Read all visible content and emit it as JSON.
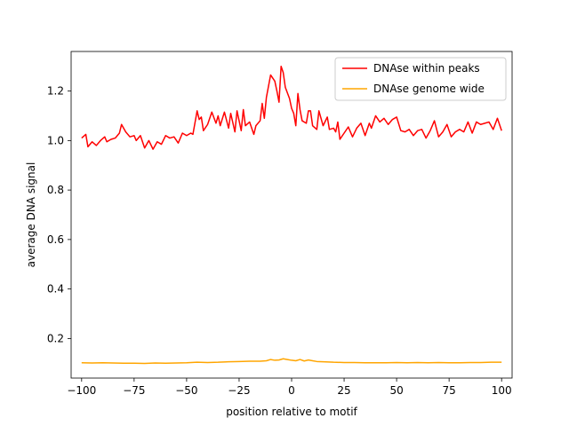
{
  "chart_data": {
    "type": "line",
    "title": "",
    "xlabel": "position relative to motif",
    "ylabel": "average DNA signal",
    "xlim": [
      -105,
      105
    ],
    "ylim": [
      0.04,
      1.36
    ],
    "xticks": [
      -100,
      -75,
      -50,
      -25,
      0,
      25,
      50,
      75,
      100
    ],
    "yticks": [
      0.2,
      0.4,
      0.6,
      0.8,
      1.0,
      1.2
    ],
    "grid": false,
    "legend": "top-right",
    "series": [
      {
        "name": "DNAse within peaks",
        "color": "#ff0000",
        "points": [
          [
            -100,
            1.01
          ],
          [
            -98,
            1.025
          ],
          [
            -97,
            0.975
          ],
          [
            -95,
            0.995
          ],
          [
            -93,
            0.98
          ],
          [
            -91,
            1.0
          ],
          [
            -89,
            1.015
          ],
          [
            -88,
            0.995
          ],
          [
            -86,
            1.005
          ],
          [
            -84,
            1.01
          ],
          [
            -82,
            1.03
          ],
          [
            -81,
            1.065
          ],
          [
            -79,
            1.035
          ],
          [
            -77,
            1.015
          ],
          [
            -75,
            1.02
          ],
          [
            -74,
            1.0
          ],
          [
            -72,
            1.02
          ],
          [
            -70,
            0.97
          ],
          [
            -68,
            1.0
          ],
          [
            -66,
            0.965
          ],
          [
            -64,
            0.995
          ],
          [
            -62,
            0.985
          ],
          [
            -60,
            1.02
          ],
          [
            -58,
            1.01
          ],
          [
            -56,
            1.015
          ],
          [
            -54,
            0.99
          ],
          [
            -52,
            1.03
          ],
          [
            -50,
            1.02
          ],
          [
            -48,
            1.03
          ],
          [
            -47,
            1.025
          ],
          [
            -45,
            1.12
          ],
          [
            -44,
            1.085
          ],
          [
            -43,
            1.095
          ],
          [
            -42,
            1.04
          ],
          [
            -40,
            1.065
          ],
          [
            -38,
            1.115
          ],
          [
            -36,
            1.07
          ],
          [
            -35,
            1.1
          ],
          [
            -34,
            1.06
          ],
          [
            -32,
            1.115
          ],
          [
            -30,
            1.05
          ],
          [
            -29,
            1.11
          ],
          [
            -27,
            1.035
          ],
          [
            -26,
            1.12
          ],
          [
            -24,
            1.04
          ],
          [
            -23,
            1.125
          ],
          [
            -22,
            1.06
          ],
          [
            -20,
            1.075
          ],
          [
            -18,
            1.025
          ],
          [
            -17,
            1.06
          ],
          [
            -15,
            1.08
          ],
          [
            -14,
            1.15
          ],
          [
            -13,
            1.09
          ],
          [
            -12,
            1.175
          ],
          [
            -10,
            1.265
          ],
          [
            -8,
            1.24
          ],
          [
            -7,
            1.2
          ],
          [
            -6,
            1.155
          ],
          [
            -5,
            1.3
          ],
          [
            -4,
            1.275
          ],
          [
            -3,
            1.215
          ],
          [
            -1,
            1.17
          ],
          [
            0,
            1.13
          ],
          [
            1,
            1.11
          ],
          [
            2,
            1.06
          ],
          [
            3,
            1.19
          ],
          [
            4,
            1.125
          ],
          [
            5,
            1.08
          ],
          [
            7,
            1.07
          ],
          [
            8,
            1.12
          ],
          [
            9,
            1.12
          ],
          [
            10,
            1.06
          ],
          [
            12,
            1.045
          ],
          [
            13,
            1.12
          ],
          [
            15,
            1.06
          ],
          [
            17,
            1.095
          ],
          [
            18,
            1.045
          ],
          [
            20,
            1.05
          ],
          [
            21,
            1.035
          ],
          [
            22,
            1.075
          ],
          [
            23,
            1.005
          ],
          [
            25,
            1.03
          ],
          [
            27,
            1.055
          ],
          [
            29,
            1.015
          ],
          [
            31,
            1.05
          ],
          [
            33,
            1.07
          ],
          [
            35,
            1.02
          ],
          [
            37,
            1.07
          ],
          [
            38,
            1.05
          ],
          [
            40,
            1.1
          ],
          [
            42,
            1.075
          ],
          [
            44,
            1.09
          ],
          [
            46,
            1.065
          ],
          [
            48,
            1.085
          ],
          [
            50,
            1.095
          ],
          [
            52,
            1.04
          ],
          [
            54,
            1.035
          ],
          [
            56,
            1.045
          ],
          [
            58,
            1.02
          ],
          [
            60,
            1.04
          ],
          [
            62,
            1.045
          ],
          [
            64,
            1.01
          ],
          [
            66,
            1.04
          ],
          [
            68,
            1.08
          ],
          [
            70,
            1.015
          ],
          [
            72,
            1.035
          ],
          [
            74,
            1.065
          ],
          [
            76,
            1.015
          ],
          [
            78,
            1.035
          ],
          [
            80,
            1.045
          ],
          [
            82,
            1.035
          ],
          [
            84,
            1.075
          ],
          [
            86,
            1.03
          ],
          [
            88,
            1.075
          ],
          [
            90,
            1.065
          ],
          [
            92,
            1.07
          ],
          [
            94,
            1.075
          ],
          [
            96,
            1.045
          ],
          [
            98,
            1.09
          ],
          [
            99,
            1.065
          ],
          [
            100,
            1.04
          ]
        ]
      },
      {
        "name": "DNAse genome wide",
        "color": "#ffa500",
        "points": [
          [
            -100,
            0.102
          ],
          [
            -95,
            0.101
          ],
          [
            -90,
            0.102
          ],
          [
            -85,
            0.101
          ],
          [
            -80,
            0.1
          ],
          [
            -75,
            0.1
          ],
          [
            -70,
            0.099
          ],
          [
            -65,
            0.101
          ],
          [
            -60,
            0.1
          ],
          [
            -55,
            0.101
          ],
          [
            -50,
            0.102
          ],
          [
            -45,
            0.104
          ],
          [
            -40,
            0.103
          ],
          [
            -35,
            0.104
          ],
          [
            -30,
            0.106
          ],
          [
            -25,
            0.107
          ],
          [
            -20,
            0.108
          ],
          [
            -15,
            0.108
          ],
          [
            -12,
            0.11
          ],
          [
            -10,
            0.115
          ],
          [
            -8,
            0.112
          ],
          [
            -6,
            0.113
          ],
          [
            -4,
            0.118
          ],
          [
            -2,
            0.115
          ],
          [
            0,
            0.112
          ],
          [
            2,
            0.11
          ],
          [
            4,
            0.115
          ],
          [
            6,
            0.109
          ],
          [
            8,
            0.113
          ],
          [
            10,
            0.11
          ],
          [
            12,
            0.107
          ],
          [
            15,
            0.106
          ],
          [
            20,
            0.104
          ],
          [
            25,
            0.103
          ],
          [
            30,
            0.103
          ],
          [
            35,
            0.102
          ],
          [
            40,
            0.102
          ],
          [
            45,
            0.102
          ],
          [
            50,
            0.103
          ],
          [
            55,
            0.102
          ],
          [
            60,
            0.103
          ],
          [
            65,
            0.102
          ],
          [
            70,
            0.103
          ],
          [
            75,
            0.102
          ],
          [
            80,
            0.102
          ],
          [
            85,
            0.103
          ],
          [
            90,
            0.103
          ],
          [
            95,
            0.104
          ],
          [
            100,
            0.104
          ]
        ]
      }
    ]
  }
}
